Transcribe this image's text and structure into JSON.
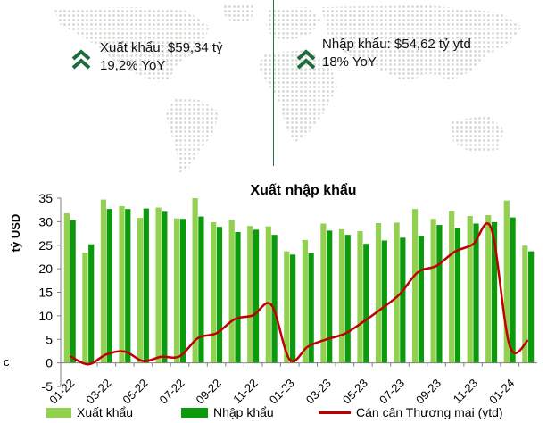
{
  "kpis": {
    "export": {
      "label_line1": "Xuất khẩu: $59,34 tỷ",
      "label_line2": "19,2% YoY",
      "icon": "double-chevron-up-icon",
      "color": "#1e6b3c"
    },
    "import": {
      "label_line1": "Nhập khẩu: $54,62 tỷ ytd",
      "label_line2": "18% YoY",
      "icon": "double-chevron-up-icon",
      "color": "#1e6b3c"
    }
  },
  "left_stub": "c",
  "colors": {
    "export": "#92d050",
    "import": "#0b9a0b",
    "balance": "#c00000",
    "map_dots": "#d9ddd6"
  },
  "chart_data": {
    "type": "bar",
    "title": "Xuất nhập khẩu",
    "ylabel": "tỷ USD",
    "ylim": [
      -5,
      35
    ],
    "yticks": [
      -5,
      0,
      5,
      10,
      15,
      20,
      25,
      30,
      35
    ],
    "grid": false,
    "legend_position": "bottom",
    "categories": [
      "01-22",
      "02-22",
      "03-22",
      "04-22",
      "05-22",
      "06-22",
      "07-22",
      "08-22",
      "09-22",
      "10-22",
      "11-22",
      "12-22",
      "01-23",
      "02-23",
      "03-23",
      "04-23",
      "05-23",
      "06-23",
      "07-23",
      "08-23",
      "09-23",
      "10-23",
      "11-23",
      "12-23",
      "01-24",
      "02-24"
    ],
    "tick_labels": [
      "01-22",
      "03-22",
      "05-22",
      "07-22",
      "09-22",
      "11-22",
      "01-23",
      "03-23",
      "05-23",
      "07-23",
      "09-23",
      "11-23",
      "01-24"
    ],
    "series": [
      {
        "name": "Xuất khẩu",
        "type": "bar",
        "values": [
          31.8,
          23.4,
          34.7,
          33.3,
          30.8,
          33.0,
          30.7,
          35.0,
          29.9,
          30.4,
          29.1,
          29.0,
          23.7,
          26.1,
          29.6,
          28.4,
          28.0,
          29.7,
          29.8,
          32.7,
          30.6,
          32.2,
          31.2,
          31.4,
          34.5,
          24.9
        ]
      },
      {
        "name": "Nhập khẩu",
        "type": "bar",
        "values": [
          30.3,
          25.2,
          32.7,
          32.7,
          32.8,
          32.1,
          30.6,
          31.1,
          28.9,
          27.8,
          28.3,
          27.2,
          23.0,
          23.3,
          28.1,
          27.2,
          25.3,
          26.0,
          26.6,
          27.0,
          29.3,
          28.6,
          29.6,
          29.9,
          30.9,
          23.7
        ]
      },
      {
        "name": "Cán cân Thương mại (ytd)",
        "type": "line",
        "values": [
          1.5,
          -0.3,
          1.8,
          2.4,
          0.4,
          1.3,
          1.4,
          5.3,
          6.3,
          9.3,
          10.1,
          12.3,
          0.7,
          3.5,
          5.0,
          6.2,
          8.7,
          11.5,
          14.6,
          19.3,
          20.6,
          23.6,
          25.2,
          28.5,
          3.6,
          4.8
        ]
      }
    ]
  }
}
